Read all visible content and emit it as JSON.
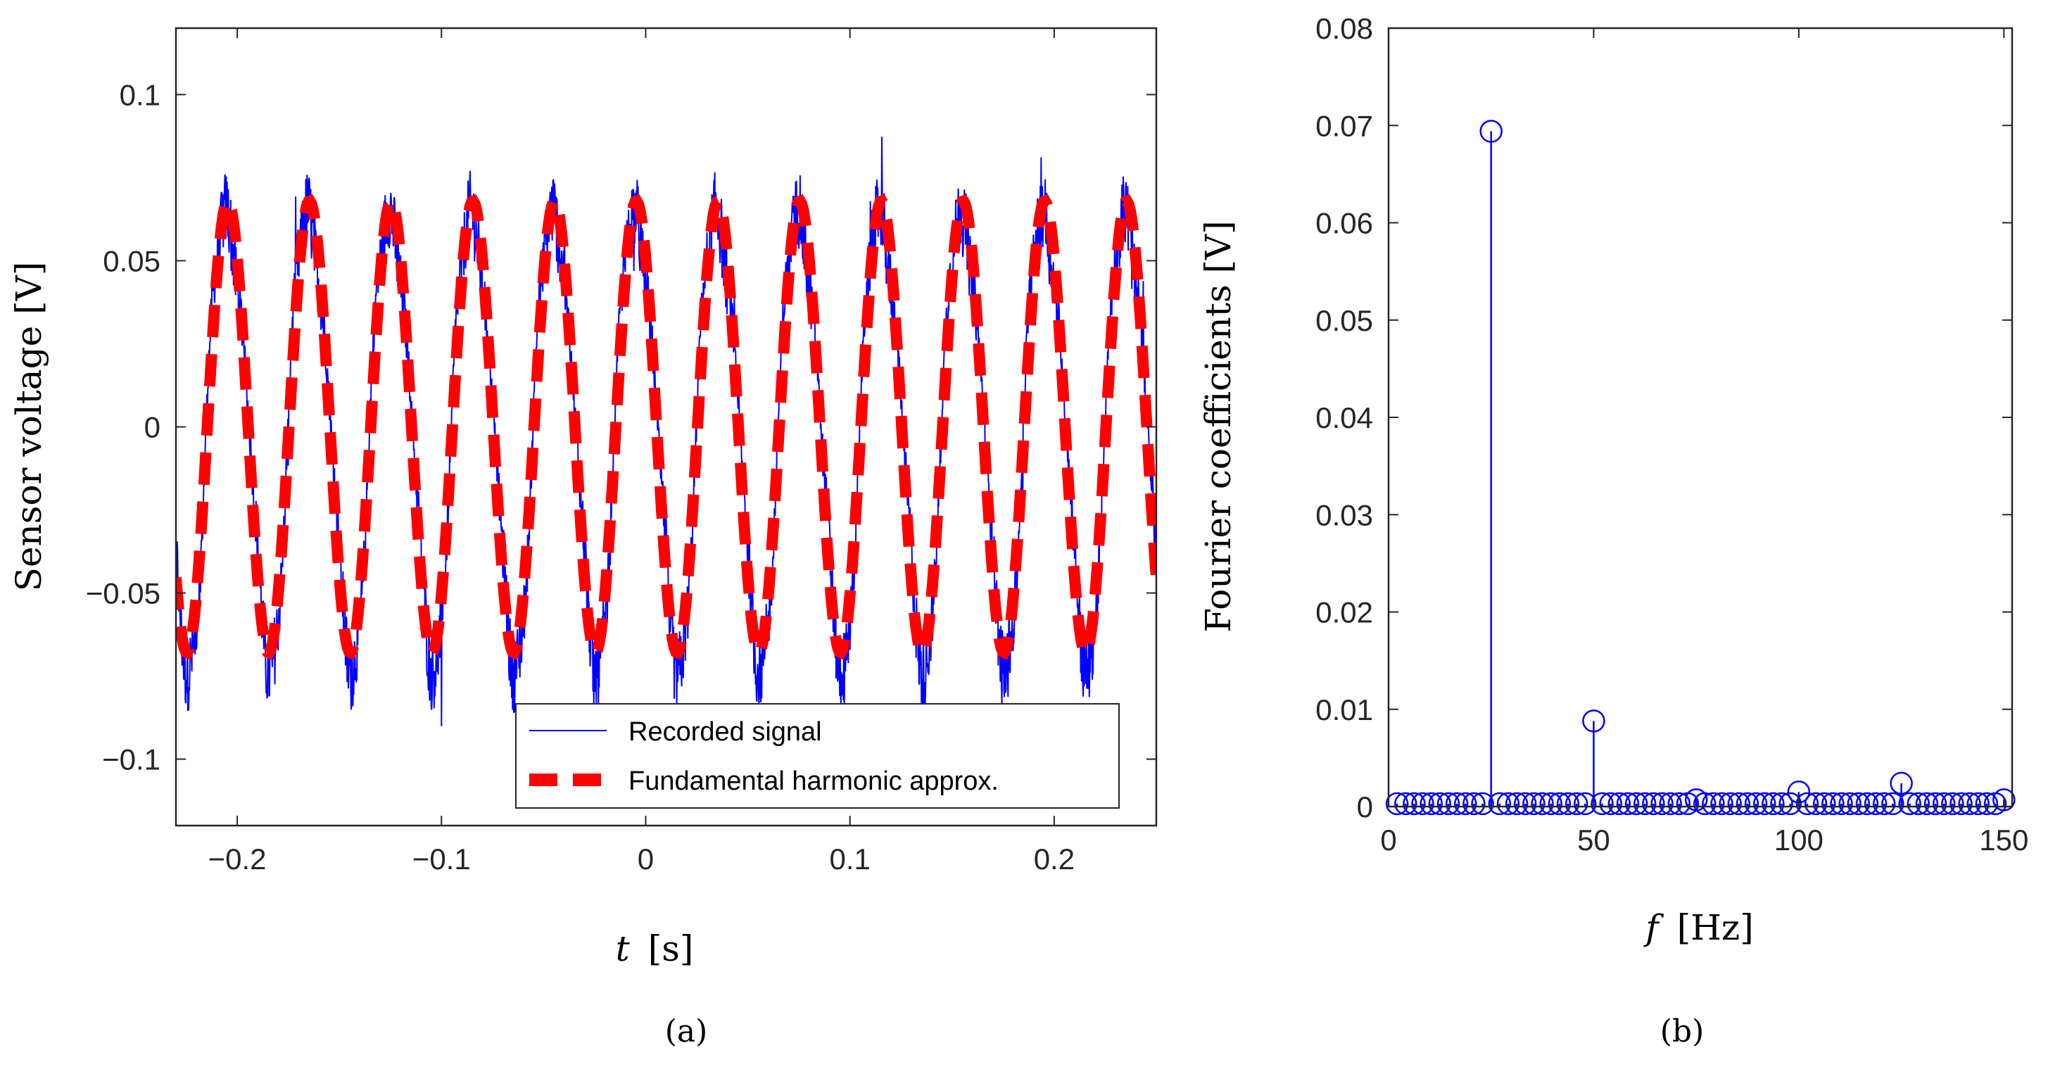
{
  "chart_data": [
    {
      "panel_label": "(a)",
      "type": "line",
      "title": "",
      "xlabel_var": "t",
      "xlabel_unit": "[s]",
      "ylabel": "Sensor voltage [V]",
      "xlim": [
        -0.23,
        0.25
      ],
      "ylim": [
        -0.12,
        0.12
      ],
      "xticks": [
        -0.2,
        -0.1,
        0,
        0.1,
        0.2
      ],
      "xtick_labels": [
        "−0.2",
        "−0.1",
        "0",
        "0.1",
        "0.2"
      ],
      "yticks": [
        -0.1,
        -0.05,
        0,
        0.05,
        0.1
      ],
      "ytick_labels": [
        "−0.1",
        "−0.05",
        "0",
        "0.05",
        "0.1"
      ],
      "legend_location": "bottom-right",
      "series": [
        {
          "name": "Recorded signal",
          "style": "solid-thin",
          "color": "#0000ff",
          "frequency_hz": 25,
          "amplitude_v": 0.068,
          "phase_rad": 2.3,
          "harmonics": [
            {
              "frequency_hz": 50,
              "amplitude_v": 0.009
            },
            {
              "frequency_hz": 75,
              "amplitude_v": 0.0008
            },
            {
              "frequency_hz": 100,
              "amplitude_v": 0.0015
            },
            {
              "frequency_hz": 125,
              "amplitude_v": 0.0025
            }
          ],
          "noise_v": 0.012
        },
        {
          "name": "Fundamental harmonic approx.",
          "style": "dashed-thick",
          "color": "#ff0000",
          "frequency_hz": 25,
          "amplitude_v": 0.068,
          "phase_rad": 2.3
        }
      ]
    },
    {
      "panel_label": "(b)",
      "type": "stem",
      "title": "",
      "xlabel_var": "f",
      "xlabel_unit": "[Hz]",
      "ylabel": "Fourier coefficients [V]",
      "xlim": [
        0,
        152
      ],
      "ylim": [
        0,
        0.08
      ],
      "xticks": [
        0,
        50,
        100,
        150
      ],
      "xtick_labels": [
        "0",
        "50",
        "100",
        "150"
      ],
      "yticks": [
        0,
        0.01,
        0.02,
        0.03,
        0.04,
        0.05,
        0.06,
        0.07,
        0.08
      ],
      "ytick_labels": [
        "0",
        "0.01",
        "0.02",
        "0.03",
        "0.04",
        "0.05",
        "0.06",
        "0.07",
        "0.08"
      ],
      "color": "#0000ff",
      "frequency_step_hz": 2.083,
      "frequency_max_hz": 150,
      "baseline_value": 0.0003,
      "peaks": [
        {
          "frequency_hz": 25,
          "value": 0.0694
        },
        {
          "frequency_hz": 50,
          "value": 0.0088
        },
        {
          "frequency_hz": 75,
          "value": 0.0007
        },
        {
          "frequency_hz": 100,
          "value": 0.0015
        },
        {
          "frequency_hz": 125,
          "value": 0.0024
        },
        {
          "frequency_hz": 150,
          "value": 0.0007
        }
      ]
    }
  ]
}
